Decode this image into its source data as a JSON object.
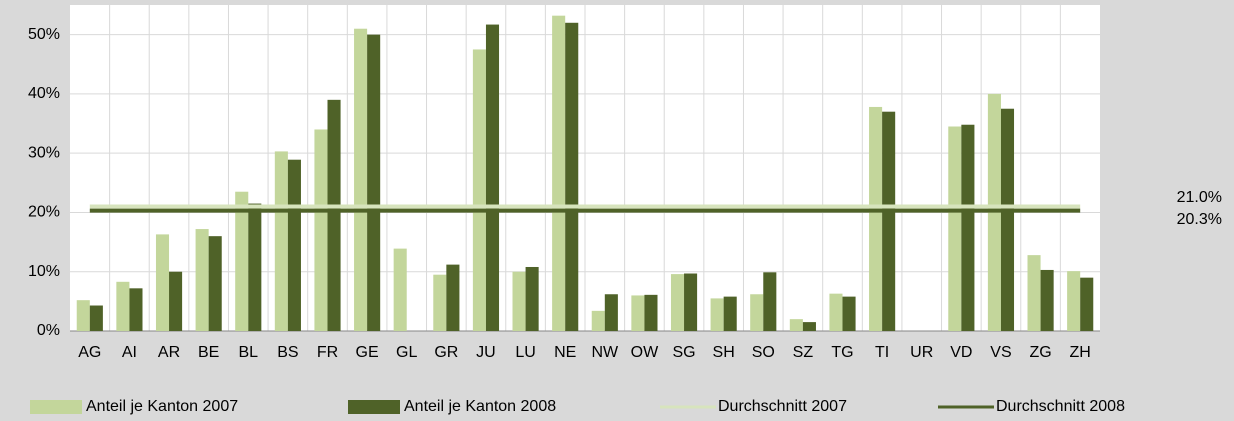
{
  "chart_data": {
    "type": "bar",
    "categories": [
      "AG",
      "AI",
      "AR",
      "BE",
      "BL",
      "BS",
      "FR",
      "GE",
      "GL",
      "GR",
      "JU",
      "LU",
      "NE",
      "NW",
      "OW",
      "SG",
      "SH",
      "SO",
      "SZ",
      "TG",
      "TI",
      "UR",
      "VD",
      "VS",
      "ZG",
      "ZH"
    ],
    "series": [
      {
        "name": "Anteil je Kanton 2007",
        "color": "#c3d69b",
        "values": [
          5.2,
          8.3,
          16.3,
          17.2,
          23.5,
          30.3,
          34,
          51,
          13.9,
          9.5,
          47.5,
          10,
          53.2,
          3.4,
          6,
          9.6,
          5.5,
          6.2,
          2,
          6.3,
          37.8,
          null,
          34.5,
          40,
          12.8,
          10.1
        ]
      },
      {
        "name": "Anteil je Kanton 2008",
        "color": "#4f6228",
        "values": [
          4.3,
          7.2,
          10,
          16,
          21.5,
          28.9,
          39,
          50,
          null,
          11.2,
          51.7,
          10.8,
          52,
          6.2,
          6.1,
          9.7,
          5.8,
          9.9,
          1.5,
          5.8,
          37,
          null,
          34.8,
          37.5,
          10.3,
          9
        ]
      }
    ],
    "averages": [
      {
        "name": "Durchschnitt 2007",
        "color": "#d7e4bd",
        "value": 21.0,
        "value_label": "21.0%"
      },
      {
        "name": "Durchschnitt 2008",
        "color": "#4f6228",
        "value": 20.3,
        "value_label": "20.3%"
      }
    ],
    "ylim": [
      0,
      55
    ],
    "yticks": [
      {
        "value": 0,
        "label": "0%"
      },
      {
        "value": 10,
        "label": "10%"
      },
      {
        "value": 20,
        "label": "20%"
      },
      {
        "value": 30,
        "label": "30%"
      },
      {
        "value": 40,
        "label": "40%"
      },
      {
        "value": 50,
        "label": "50%"
      }
    ],
    "grid": true,
    "legend": "bottom"
  }
}
